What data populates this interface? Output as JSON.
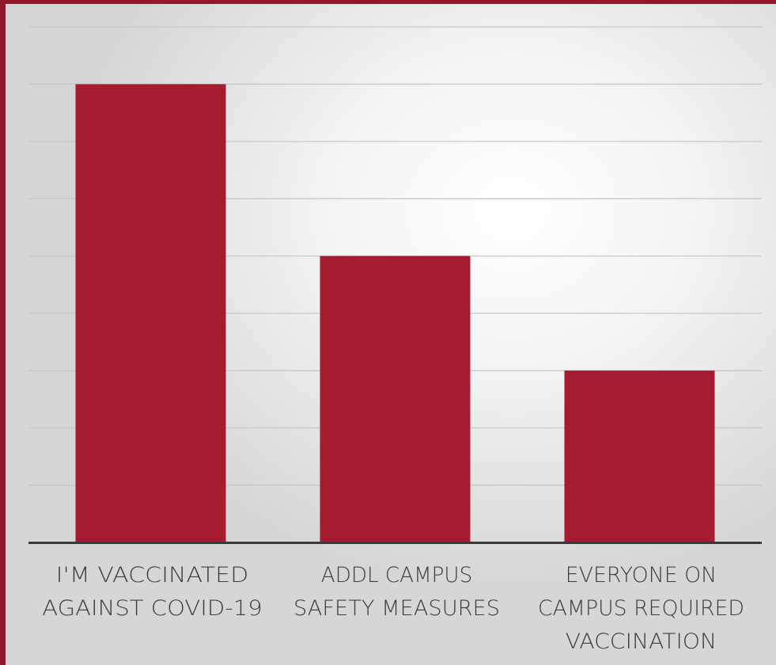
{
  "chart_data": {
    "type": "bar",
    "title": "",
    "xlabel": "",
    "ylabel": "",
    "categories": [
      [
        "I'M VACCINATED",
        "AGAINST COVID-19"
      ],
      [
        "ADDL CAMPUS",
        "SAFETY MEASURES"
      ],
      [
        "EVERYONE ON",
        "CAMPUS REQUIRED",
        "VACCINATION"
      ]
    ],
    "values": [
      40,
      25,
      15
    ],
    "ylim": [
      0,
      45
    ],
    "ytick_step": 5,
    "show_ytick_labels": false,
    "grid": true,
    "legend": "none",
    "bar_color": "#a51c30",
    "grid_color": "#c8c8c8",
    "axis_color": "#3a3a3a",
    "label_color": "#3d3d3d",
    "frame_color": "#8f1a2b"
  }
}
